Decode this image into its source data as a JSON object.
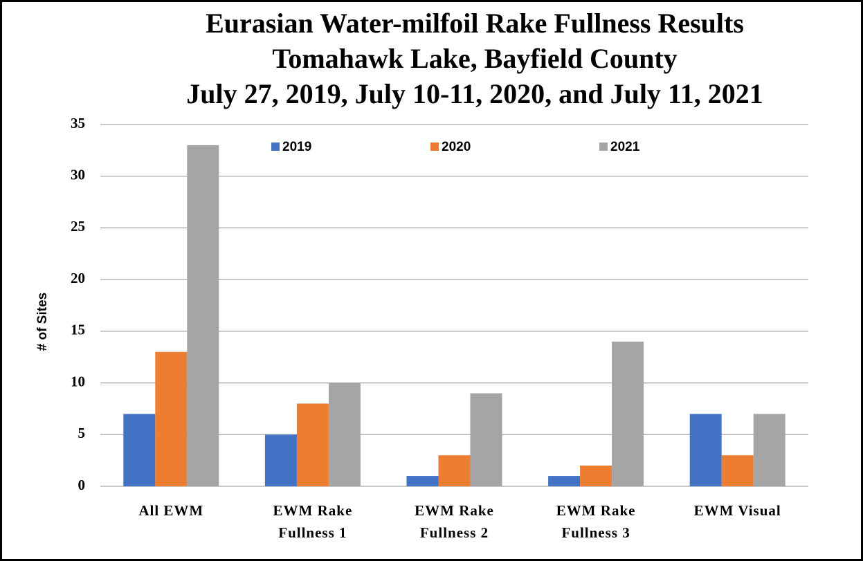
{
  "chart_data": {
    "type": "bar",
    "title": [
      "Eurasian Water-milfoil Rake Fullness Results",
      "Tomahawk Lake, Bayfield County",
      "July 27, 2019, July 10-11, 2020, and July 11, 2021"
    ],
    "y_label": "# of Sites",
    "categories": [
      "All EWM",
      "EWM Rake Fullness 1",
      "EWM Rake Fullness 2",
      "EWM Rake Fullness 3",
      "EWM Visual"
    ],
    "series": [
      {
        "name": "2019",
        "color": "#4472c4",
        "values": [
          7,
          5,
          1,
          1,
          7
        ]
      },
      {
        "name": "2020",
        "color": "#ed7d31",
        "values": [
          13,
          8,
          3,
          2,
          3
        ]
      },
      {
        "name": "2021",
        "color": "#a5a5a5",
        "values": [
          33,
          10,
          9,
          14,
          7
        ]
      }
    ],
    "ylim": [
      0,
      35
    ],
    "yticks": [
      0,
      5,
      10,
      15,
      20,
      25,
      30,
      35
    ],
    "grid": true,
    "legend": "top"
  }
}
